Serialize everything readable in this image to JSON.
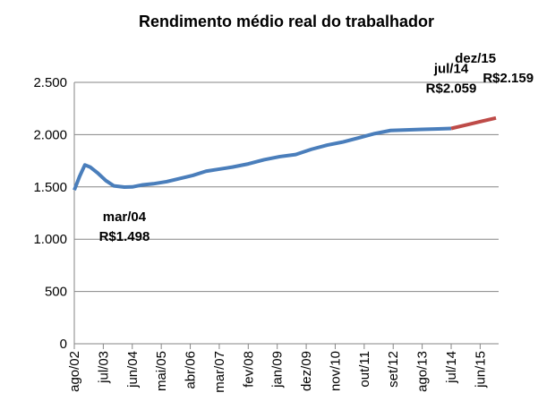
{
  "chart_data": {
    "type": "line",
    "title": "Rendimento médio real do trabalhador",
    "xlim": [
      0,
      161
    ],
    "xticks": [
      {
        "value": 0,
        "label": "ago/02"
      },
      {
        "value": 11,
        "label": "jul/03"
      },
      {
        "value": 22,
        "label": "jun/04"
      },
      {
        "value": 33,
        "label": "mai/05"
      },
      {
        "value": 44,
        "label": "abr/06"
      },
      {
        "value": 55,
        "label": "mar/07"
      },
      {
        "value": 66,
        "label": "fev/08"
      },
      {
        "value": 77,
        "label": "jan/09"
      },
      {
        "value": 88,
        "label": "dez/09"
      },
      {
        "value": 99,
        "label": "nov/10"
      },
      {
        "value": 110,
        "label": "out/11"
      },
      {
        "value": 121,
        "label": "set/12"
      },
      {
        "value": 132,
        "label": "ago/13"
      },
      {
        "value": 143,
        "label": "jul/14"
      },
      {
        "value": 154,
        "label": "jun/15"
      }
    ],
    "ylim": [
      0,
      2500
    ],
    "yticks": [
      0,
      500,
      {
        "value": 1000,
        "label": "1.000"
      },
      {
        "value": 1500,
        "label": "1.500"
      },
      {
        "value": 2000,
        "label": "2.000"
      },
      {
        "value": 2500,
        "label": "2.500"
      }
    ],
    "grid": true,
    "series": [
      {
        "color": "#4a7ebb",
        "x": [
          0,
          2,
          4,
          6,
          9,
          12,
          15,
          19,
          22,
          26,
          30,
          35,
          40,
          45,
          50,
          55,
          60,
          66,
          72,
          78,
          84,
          90,
          96,
          102,
          108,
          114,
          120,
          126,
          132,
          138,
          143
        ],
        "values": [
          1470,
          1600,
          1710,
          1690,
          1630,
          1560,
          1510,
          1498,
          1500,
          1520,
          1530,
          1550,
          1580,
          1610,
          1650,
          1670,
          1690,
          1720,
          1760,
          1790,
          1810,
          1860,
          1900,
          1930,
          1970,
          2010,
          2040,
          2045,
          2050,
          2055,
          2059
        ]
      },
      {
        "color": "#be4b48",
        "x": [
          143,
          150,
          155,
          160
        ],
        "values": [
          2059,
          2100,
          2130,
          2159
        ]
      }
    ],
    "annotations": [
      {
        "x": 19,
        "date": "mar/04",
        "value": 1498,
        "value_label": "R$1.498",
        "place": "below"
      },
      {
        "x": 143,
        "date": "jul/14",
        "value": 2059,
        "value_label": "R$2.059",
        "place": "above"
      },
      {
        "x": 160,
        "date": "dez/15",
        "value": 2159,
        "value_label": "R$2.159",
        "place": "above"
      }
    ]
  }
}
